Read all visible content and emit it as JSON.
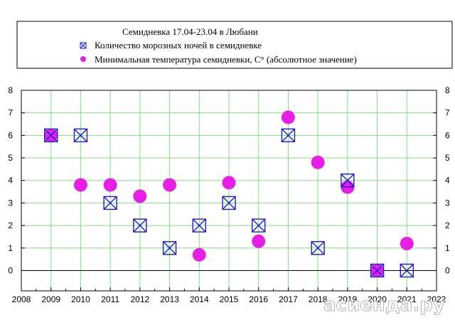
{
  "chart_data": {
    "type": "scatter",
    "title": "Семидневка 17.04-23.04 в Любани",
    "x_ticks": [
      2008,
      2009,
      2010,
      2011,
      2012,
      2013,
      2014,
      2015,
      2016,
      2017,
      2018,
      2019,
      2020,
      2021,
      2022
    ],
    "y_ticks": [
      0,
      1,
      2,
      3,
      4,
      5,
      6,
      7,
      8
    ],
    "xlim": [
      2008,
      2022
    ],
    "ylim": [
      -0.9,
      8
    ],
    "grid": true,
    "grid_color": "#7ee07e",
    "legend_position": "top",
    "series": [
      {
        "name": "Количество морозных ночей в семидневке",
        "marker": "boxed-x",
        "color": "#1a1ad6",
        "x": [
          2009,
          2010,
          2011,
          2012,
          2013,
          2014,
          2015,
          2016,
          2017,
          2018,
          2019,
          2020,
          2021
        ],
        "y": [
          6,
          6,
          3,
          2,
          1,
          2,
          3,
          2,
          6,
          1,
          4,
          0,
          0
        ]
      },
      {
        "name": "Минимальная температура семидневки, С° (абсолютное значение)",
        "marker": "filled-circle",
        "color": "#e61ee6",
        "x": [
          2009,
          2010,
          2011,
          2012,
          2013,
          2014,
          2015,
          2016,
          2017,
          2018,
          2019,
          2020,
          2021
        ],
        "y": [
          6,
          3.8,
          3.8,
          3.3,
          3.8,
          0.7,
          3.9,
          1.3,
          6.8,
          4.8,
          3.7,
          0,
          1.2
        ]
      }
    ]
  },
  "watermark": "асиенда.ру"
}
